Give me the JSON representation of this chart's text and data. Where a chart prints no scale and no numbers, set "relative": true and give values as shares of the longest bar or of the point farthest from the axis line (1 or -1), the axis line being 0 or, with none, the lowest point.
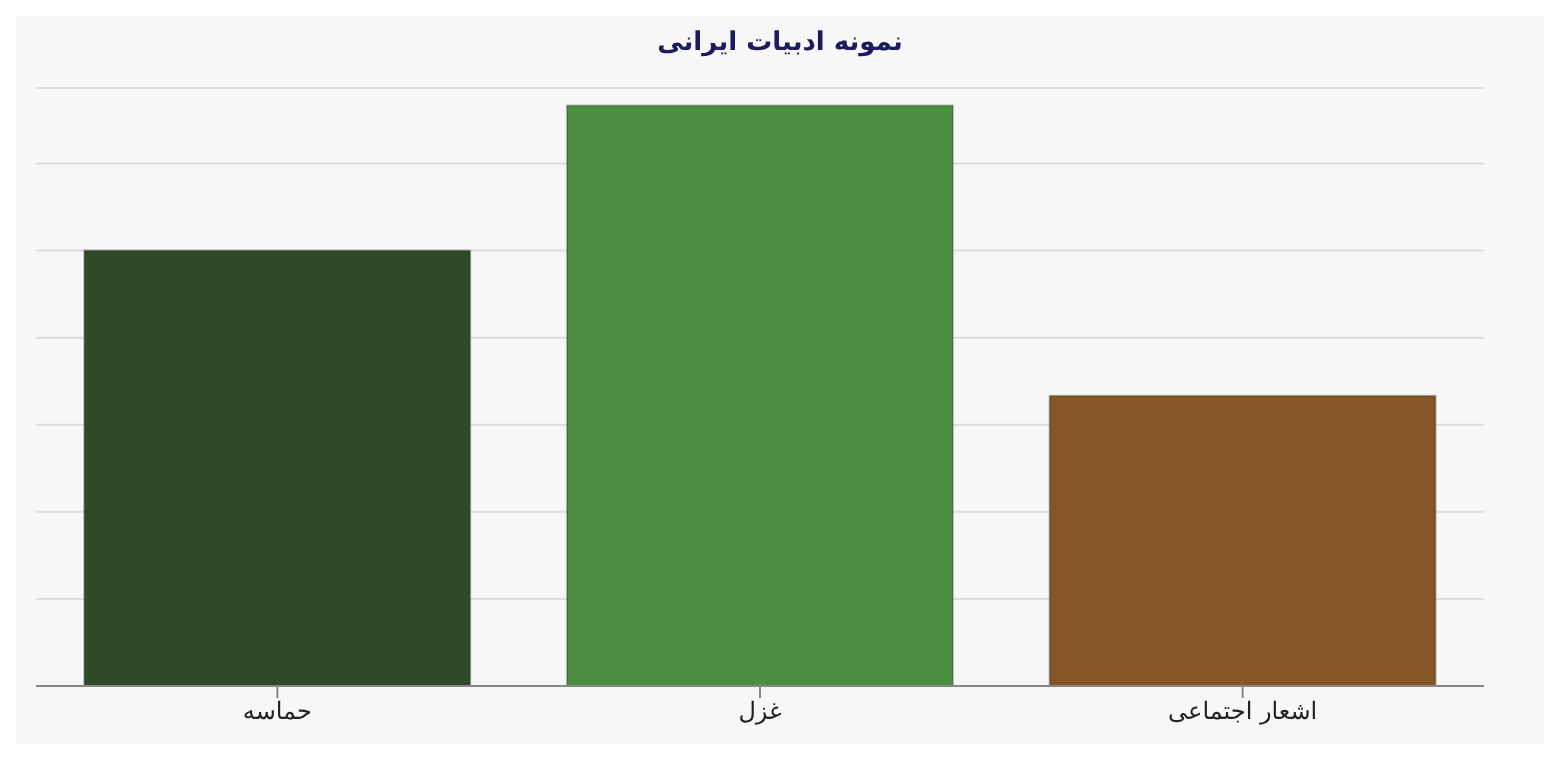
{
  "chart_data": {
    "type": "bar",
    "title": "نمونه ادبیات ایرانی",
    "categories": [
      "حماسه",
      "غزل",
      "اشعار اجتماعی"
    ],
    "values": [
      0.75,
      1,
      0.5
    ],
    "colors": [
      "#2e4a28",
      "#4c8f42",
      "#855625"
    ],
    "relative": true,
    "grid": "y"
  }
}
